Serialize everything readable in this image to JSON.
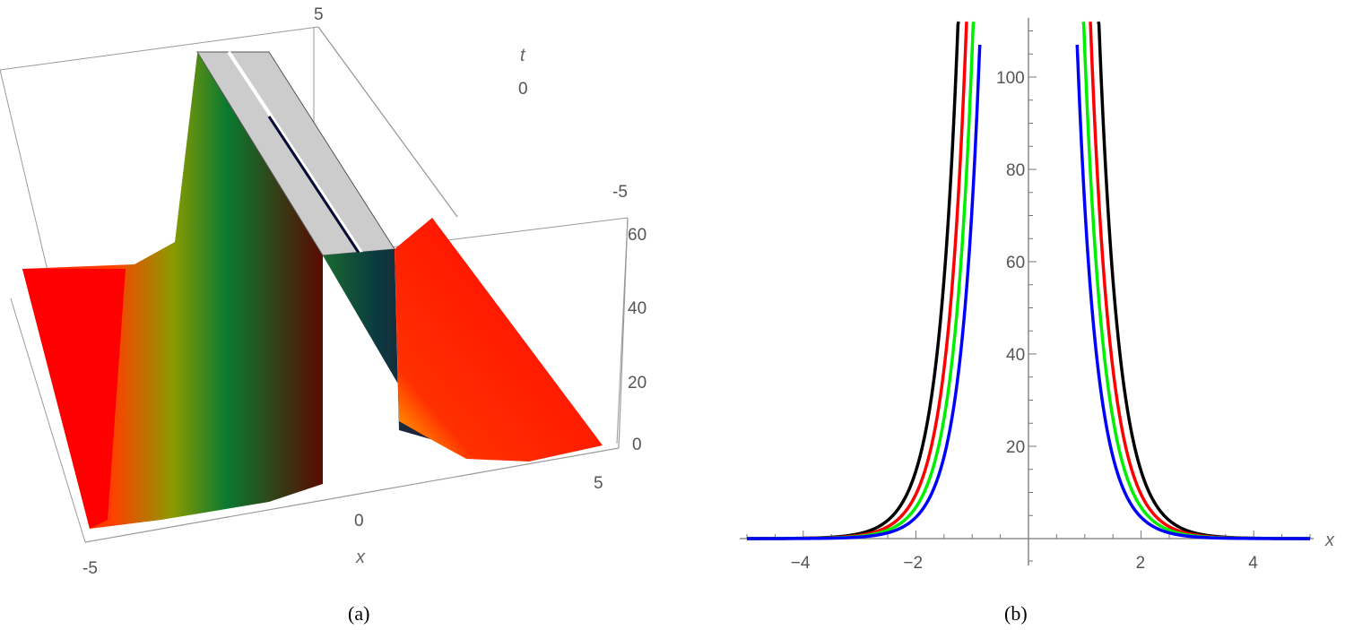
{
  "chart_data": [
    {
      "id": "a",
      "type": "surface3d",
      "caption": "(a)",
      "title": "",
      "xlabel": "x",
      "ylabel": "t",
      "zlabel": "",
      "x_ticks": [
        "-5",
        "0",
        "5"
      ],
      "t_ticks": [
        "-5",
        "0",
        "5"
      ],
      "z_ticks": [
        "0",
        "20",
        "40",
        "60"
      ],
      "xlim": [
        -5,
        5
      ],
      "tlim": [
        -5,
        5
      ],
      "zlim": [
        0,
        60
      ],
      "description": "Singular (peakon-like) ridge travelling along t, clipped at top (gray cap); red base with yellow-green-dark gradient on rising walls",
      "colors": {
        "base": "#ff0000",
        "mid": "#8a9a00",
        "high": "#0a7a30",
        "top": "#5a0a00",
        "clip": "#cccccc"
      }
    },
    {
      "id": "b",
      "type": "line",
      "caption": "(b)",
      "title": "",
      "xlabel": "x",
      "ylabel": "",
      "x_ticks": [
        "-4",
        "-2",
        "2",
        "4"
      ],
      "y_ticks": [
        "20",
        "40",
        "60",
        "80",
        "100"
      ],
      "xlim": [
        -5,
        5
      ],
      "ylim": [
        0,
        112
      ],
      "grid": false,
      "legend": null,
      "series": [
        {
          "name": "black",
          "color": "#000000",
          "x": [
            -5,
            -3,
            -2.5,
            -2,
            -1.5,
            -1.3,
            -1.2,
            1.2,
            1.3,
            1.5,
            2,
            2.5,
            3,
            5
          ],
          "y": [
            0,
            0.5,
            2.5,
            8,
            25,
            45,
            112,
            112,
            45,
            25,
            8,
            2.5,
            0.5,
            0
          ]
        },
        {
          "name": "red",
          "color": "#ff0000",
          "x": [
            -5,
            -3,
            -2.5,
            -2,
            -1.5,
            -1.2,
            -1.05,
            1.05,
            1.2,
            1.5,
            2,
            2.5,
            3,
            5
          ],
          "y": [
            0,
            0.4,
            1.8,
            6,
            19,
            40,
            112,
            112,
            40,
            19,
            6,
            1.8,
            0.4,
            0
          ]
        },
        {
          "name": "green",
          "color": "#00ee00",
          "x": [
            -5,
            -3,
            -2.5,
            -2,
            -1.5,
            -1.1,
            -0.95,
            0.95,
            1.1,
            1.5,
            2,
            2.5,
            3,
            5
          ],
          "y": [
            0,
            0.3,
            1.4,
            4.5,
            15,
            40,
            112,
            112,
            40,
            15,
            4.5,
            1.4,
            0.3,
            0
          ]
        },
        {
          "name": "blue",
          "color": "#0000ff",
          "x": [
            -5,
            -3,
            -2.5,
            -2,
            -1.5,
            -1.0,
            -0.65,
            0.65,
            1.0,
            1.5,
            2,
            2.5,
            3,
            5
          ],
          "y": [
            0,
            0.2,
            1.0,
            3.5,
            11,
            35,
            107,
            107,
            35,
            11,
            3.5,
            1.0,
            0.2,
            0
          ]
        }
      ]
    }
  ]
}
